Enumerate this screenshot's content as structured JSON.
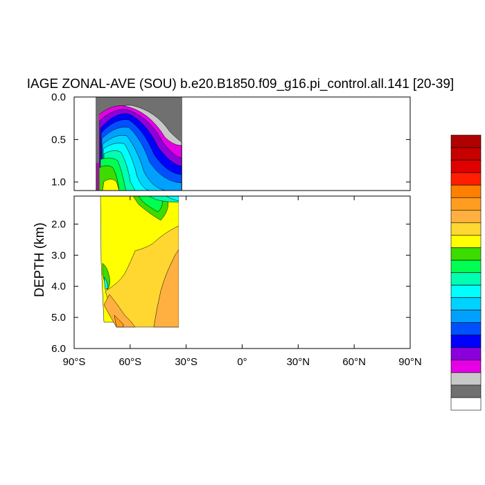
{
  "chart_data": {
    "type": "heatmap",
    "title": "IAGE ZONAL-AVE (SOU) b.e20.B1850.f09_g16.pi_control.all.141 [20-39]",
    "ylabel": "DEPTH (km)",
    "xlabel": "",
    "xlim": [
      -90,
      90
    ],
    "x_ticks": [
      {
        "value": -90,
        "label": "90°S"
      },
      {
        "value": -60,
        "label": "60°S"
      },
      {
        "value": -30,
        "label": "30°S"
      },
      {
        "value": 0,
        "label": "0°"
      },
      {
        "value": 30,
        "label": "30°N"
      },
      {
        "value": 60,
        "label": "60°N"
      },
      {
        "value": 90,
        "label": "90°N"
      }
    ],
    "upper_panel": {
      "ylim": [
        0.0,
        1.1
      ],
      "y_ticks": [
        {
          "value": 0.0,
          "label": "0.0"
        },
        {
          "value": 0.5,
          "label": "0.5"
        },
        {
          "value": 1.0,
          "label": "1.0"
        }
      ]
    },
    "lower_panel": {
      "ylim": [
        1.1,
        6.0
      ],
      "y_ticks": [
        {
          "value": 2.0,
          "label": "2.0"
        },
        {
          "value": 3.0,
          "label": "3.0"
        },
        {
          "value": 4.0,
          "label": "4.0"
        },
        {
          "value": 5.0,
          "label": "5.0"
        },
        {
          "value": 6.0,
          "label": "6.0"
        }
      ]
    },
    "data_extent": {
      "lat_min": -78,
      "lat_max": -33
    },
    "colorbar": [
      "#b00000",
      "#c80000",
      "#e00000",
      "#ff1e00",
      "#ff7f00",
      "#ff9d20",
      "#ffb040",
      "#ffd730",
      "#ffff00",
      "#3cdc00",
      "#00ff50",
      "#00ffb0",
      "#00ffff",
      "#00d2ff",
      "#00a0ff",
      "#0050ff",
      "#0000ff",
      "#8c00dc",
      "#e600e6",
      "#c8c8c8",
      "#707070",
      "#ffffff"
    ],
    "legend": "right-vertical",
    "grid": false
  }
}
